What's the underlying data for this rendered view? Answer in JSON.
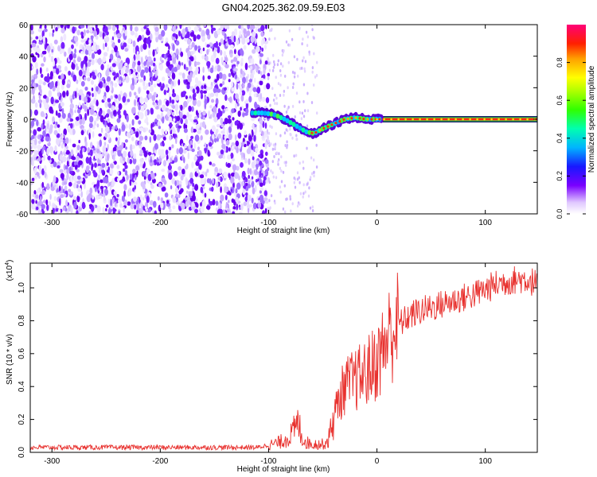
{
  "title": "GN04.2025.362.09.59.E03",
  "chart_data": [
    {
      "type": "heatmap",
      "name": "spectrogram",
      "xlabel": "Height of straight line (km)",
      "ylabel": "Frequency (Hz)",
      "xlim": [
        -320,
        148
      ],
      "ylim": [
        -60,
        60
      ],
      "xticks": [
        -300,
        -200,
        -100,
        0,
        100
      ],
      "yticks": [
        -60,
        -40,
        -20,
        0,
        20,
        40,
        60
      ],
      "noise_region_x": [
        -320,
        -100
      ],
      "sparse_noise_x": [
        -100,
        -55
      ],
      "signal_track": {
        "x": [
          -115,
          -105,
          -95,
          -85,
          -75,
          -65,
          -58,
          -50,
          -40,
          -30,
          -20,
          -10,
          0,
          20,
          60,
          100,
          148
        ],
        "freq": [
          4,
          4,
          3,
          0,
          -4,
          -8,
          -9,
          -6,
          -3,
          0,
          1,
          0,
          0,
          0,
          0,
          0,
          0
        ]
      },
      "colorbar": {
        "label": "Normalized spectral amplitude",
        "range": [
          0,
          1
        ],
        "ticks": [
          0.0,
          0.2,
          0.4,
          0.6,
          0.8
        ],
        "tick_labels": [
          "0.0",
          "0.2",
          "0.4",
          "0.6",
          "0.8"
        ]
      }
    },
    {
      "type": "line",
      "name": "snr",
      "xlabel": "Height of straight line (km)",
      "ylabel": "SNR (10 * v/v)",
      "scale_label": "(x10",
      "scale_exp": "4",
      "xlim": [
        -320,
        148
      ],
      "ylim": [
        0,
        1.15
      ],
      "xticks": [
        -300,
        -200,
        -100,
        0,
        100
      ],
      "yticks": [
        0.0,
        0.2,
        0.4,
        0.6,
        0.8,
        1.0
      ],
      "ytick_labels": [
        "0.0",
        "0.2",
        "0.4",
        "0.6",
        "0.8",
        "1.0"
      ],
      "color": "#e8312e",
      "series": {
        "x": [
          -320,
          -200,
          -110,
          -90,
          -80,
          -75,
          -72,
          -70,
          -65,
          -60,
          -50,
          -45,
          -40,
          -35,
          -30,
          -25,
          -20,
          -15,
          -10,
          -5,
          0,
          5,
          10,
          15,
          20,
          25,
          30,
          40,
          50,
          60,
          70,
          80,
          90,
          100,
          110,
          120,
          130,
          140,
          148
        ],
        "y": [
          0.03,
          0.03,
          0.03,
          0.06,
          0.1,
          0.15,
          0.18,
          0.1,
          0.06,
          0.05,
          0.05,
          0.07,
          0.22,
          0.32,
          0.4,
          0.42,
          0.44,
          0.46,
          0.48,
          0.52,
          0.55,
          0.62,
          0.7,
          0.75,
          0.78,
          0.8,
          0.83,
          0.86,
          0.88,
          0.9,
          0.92,
          0.94,
          0.96,
          0.99,
          1.02,
          1.04,
          1.05,
          1.05,
          1.02
        ]
      }
    }
  ]
}
